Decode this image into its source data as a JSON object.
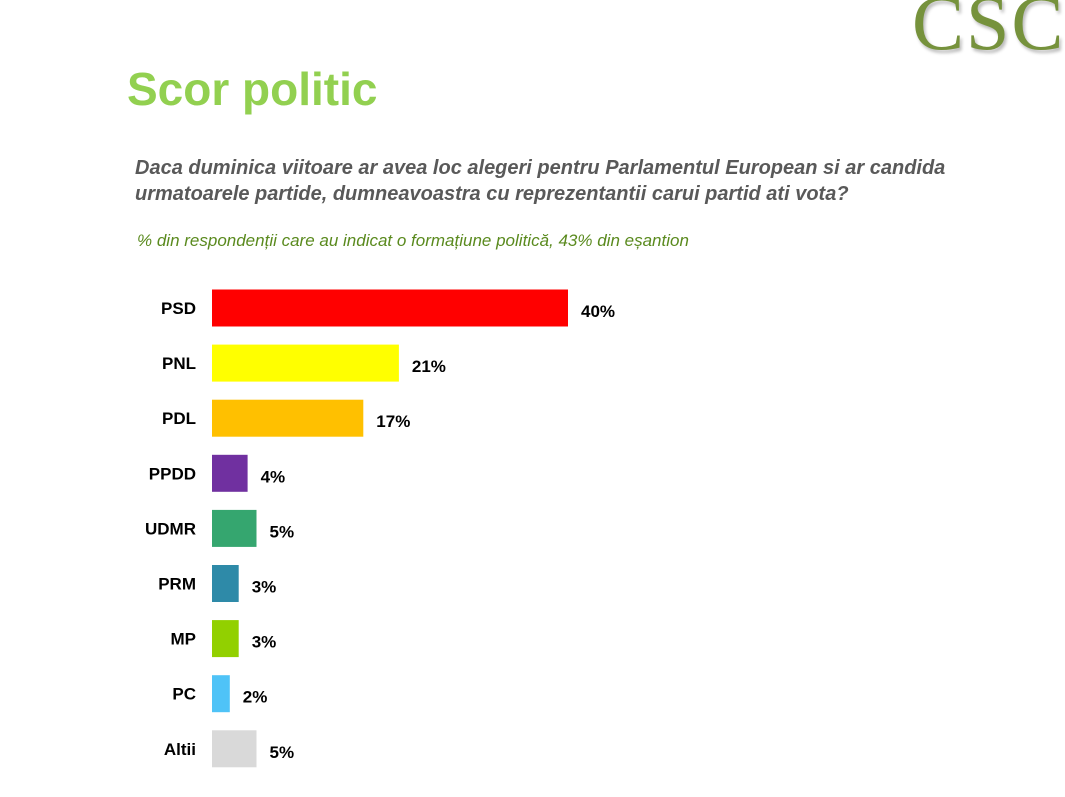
{
  "logo_text": "CSCI",
  "title": "Scor politic",
  "question": "Daca duminica viitoare ar avea loc alegeri pentru Parlamentul European si ar candida urmatoarele partide, dumneavoastra cu reprezentantii carui partid ati vota?",
  "subtitle": "% din respondenții care au indicat o formațiune politică, 43% din eșantion",
  "chart_data": {
    "type": "bar",
    "orientation": "horizontal",
    "categories": [
      "PSD",
      "PNL",
      "PDL",
      "PPDD",
      "UDMR",
      "PRM",
      "MP",
      "PC",
      "Altii"
    ],
    "values": [
      40,
      21,
      17,
      4,
      5,
      3,
      3,
      2,
      5
    ],
    "labels": [
      "40%",
      "21%",
      "17%",
      "4%",
      "5%",
      "3%",
      "3%",
      "2%",
      "5%"
    ],
    "colors": [
      "#ff0000",
      "#ffff00",
      "#ffc000",
      "#7030a0",
      "#35a66f",
      "#2e8aa8",
      "#92d000",
      "#4fc3f7",
      "#d9d9d9"
    ],
    "grid": false,
    "axis_visible": false
  }
}
